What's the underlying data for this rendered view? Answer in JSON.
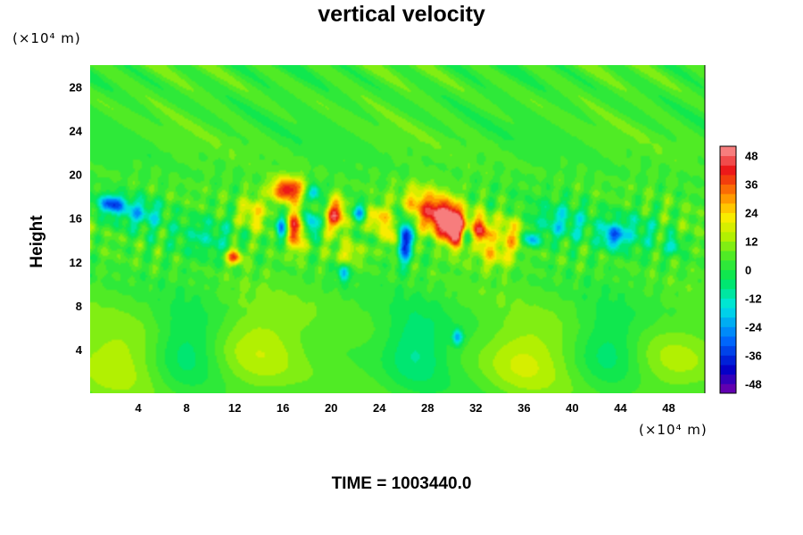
{
  "chart_data": {
    "type": "heatmap",
    "title": "vertical velocity",
    "xlabel": "",
    "ylabel": "Height",
    "x_unit": "(×10⁴ m)",
    "y_unit": "(×10⁴ m)",
    "xlim": [
      0,
      51
    ],
    "ylim": [
      0,
      30
    ],
    "x_ticks": [
      4,
      8,
      12,
      16,
      20,
      24,
      28,
      32,
      36,
      40,
      44,
      48
    ],
    "y_ticks": [
      4,
      8,
      12,
      16,
      20,
      24,
      28
    ],
    "colorbar": {
      "range": [
        -52,
        52
      ],
      "ticks": [
        48,
        36,
        24,
        12,
        0,
        -12,
        -24,
        -36,
        -48
      ],
      "levels": 26
    },
    "background_value": 4,
    "features": [
      {
        "x": 29.5,
        "y": 15.8,
        "value": 50,
        "sx": 0.9,
        "sy": 1.2
      },
      {
        "x": 30.6,
        "y": 14.6,
        "value": 40,
        "sx": 0.6,
        "sy": 1.2
      },
      {
        "x": 16.4,
        "y": 18.6,
        "value": 42,
        "sx": 1.0,
        "sy": 0.8
      },
      {
        "x": 17.0,
        "y": 15.0,
        "value": 38,
        "sx": 0.5,
        "sy": 1.3
      },
      {
        "x": 20.4,
        "y": 16.3,
        "value": 40,
        "sx": 0.6,
        "sy": 1.1
      },
      {
        "x": 12.0,
        "y": 12.5,
        "value": 36,
        "sx": 0.5,
        "sy": 0.5
      },
      {
        "x": 32.5,
        "y": 14.8,
        "value": 38,
        "sx": 0.5,
        "sy": 1.0
      },
      {
        "x": 27.5,
        "y": 17.0,
        "value": 26,
        "sx": 1.3,
        "sy": 1.3
      },
      {
        "x": 23.5,
        "y": 16.0,
        "value": 24,
        "sx": 0.8,
        "sy": 0.8
      },
      {
        "x": 34.8,
        "y": 14.5,
        "value": 20,
        "sx": 0.7,
        "sy": 1.2
      },
      {
        "x": 13.5,
        "y": 16.5,
        "value": 18,
        "sx": 0.7,
        "sy": 1.0
      },
      {
        "x": 25.2,
        "y": 14.6,
        "value": 30,
        "sx": 0.6,
        "sy": 1.0
      },
      {
        "x": 33.5,
        "y": 12.5,
        "value": 16,
        "sx": 1.0,
        "sy": 0.8
      },
      {
        "x": 21.5,
        "y": 12.8,
        "value": 14,
        "sx": 0.9,
        "sy": 0.7
      },
      {
        "x": 26.0,
        "y": 14.3,
        "value": -52,
        "sx": 0.45,
        "sy": 1.5
      },
      {
        "x": 15.9,
        "y": 15.1,
        "value": -34,
        "sx": 0.35,
        "sy": 0.9
      },
      {
        "x": 18.3,
        "y": 15.5,
        "value": -30,
        "sx": 0.4,
        "sy": 0.8
      },
      {
        "x": 22.4,
        "y": 16.5,
        "value": -32,
        "sx": 0.4,
        "sy": 0.6
      },
      {
        "x": 18.6,
        "y": 18.4,
        "value": -28,
        "sx": 0.4,
        "sy": 0.5
      },
      {
        "x": 31.2,
        "y": 14.2,
        "value": -30,
        "sx": 0.4,
        "sy": 0.8
      },
      {
        "x": 21.0,
        "y": 11.0,
        "value": -26,
        "sx": 0.3,
        "sy": 0.6
      },
      {
        "x": 1.8,
        "y": 17.3,
        "value": -34,
        "sx": 0.8,
        "sy": 0.6
      },
      {
        "x": 4.2,
        "y": 16.5,
        "value": -18,
        "sx": 1.2,
        "sy": 0.9
      },
      {
        "x": 36.6,
        "y": 14.0,
        "value": -24,
        "sx": 0.5,
        "sy": 0.5
      },
      {
        "x": 43.4,
        "y": 14.3,
        "value": -26,
        "sx": 0.6,
        "sy": 0.7
      },
      {
        "x": 48.5,
        "y": 13.5,
        "value": -20,
        "sx": 0.4,
        "sy": 0.5
      },
      {
        "x": 30.5,
        "y": 5.1,
        "value": -26,
        "sx": 0.3,
        "sy": 0.5
      },
      {
        "x": 39.0,
        "y": 15.5,
        "value": -14,
        "sx": 1.5,
        "sy": 1.2
      },
      {
        "x": 45.0,
        "y": 15.0,
        "value": -12,
        "sx": 1.8,
        "sy": 1.3
      },
      {
        "x": 10.0,
        "y": 14.5,
        "value": -10,
        "sx": 1.8,
        "sy": 1.5
      },
      {
        "x": 8.0,
        "y": 4.0,
        "value": -10,
        "sx": 1.8,
        "sy": 2.5
      },
      {
        "x": 27.0,
        "y": 4.0,
        "value": -12,
        "sx": 1.8,
        "sy": 2.5
      },
      {
        "x": 43.0,
        "y": 4.0,
        "value": -10,
        "sx": 1.8,
        "sy": 2.5
      },
      {
        "x": 14.0,
        "y": 4.0,
        "value": 12,
        "sx": 2.5,
        "sy": 3.0
      },
      {
        "x": 36.0,
        "y": 3.0,
        "value": 12,
        "sx": 2.5,
        "sy": 2.5
      },
      {
        "x": 2.0,
        "y": 3.0,
        "value": 10,
        "sx": 2.5,
        "sy": 2.5
      },
      {
        "x": 48.5,
        "y": 3.0,
        "value": 10,
        "sx": 2.5,
        "sy": 2.5
      }
    ]
  },
  "annotation": {
    "time_label": "TIME =",
    "time_value": "1003440.0"
  }
}
